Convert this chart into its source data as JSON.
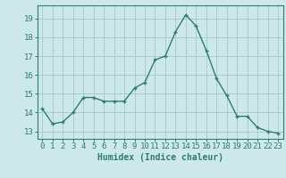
{
  "x": [
    0,
    1,
    2,
    3,
    4,
    5,
    6,
    7,
    8,
    9,
    10,
    11,
    12,
    13,
    14,
    15,
    16,
    17,
    18,
    19,
    20,
    21,
    22,
    23
  ],
  "y": [
    14.2,
    13.4,
    13.5,
    14.0,
    14.8,
    14.8,
    14.6,
    14.6,
    14.6,
    15.3,
    15.6,
    16.8,
    17.0,
    18.3,
    19.2,
    18.6,
    17.3,
    15.8,
    14.9,
    13.8,
    13.8,
    13.2,
    13.0,
    12.9
  ],
  "line_color": "#2e7d6e",
  "marker": "+",
  "marker_size": 3.5,
  "marker_linewidth": 1.0,
  "bg_color": "#cce8e8",
  "grid_color": "#aacccc",
  "xlabel": "Humidex (Indice chaleur)",
  "xlabel_fontsize": 7,
  "ylabel_ticks": [
    13,
    14,
    15,
    16,
    17,
    18,
    19
  ],
  "ylim": [
    12.6,
    19.7
  ],
  "xlim": [
    -0.5,
    23.5
  ],
  "tick_fontsize": 6.5,
  "line_width": 1.0,
  "spine_color": "#2e7d6e"
}
